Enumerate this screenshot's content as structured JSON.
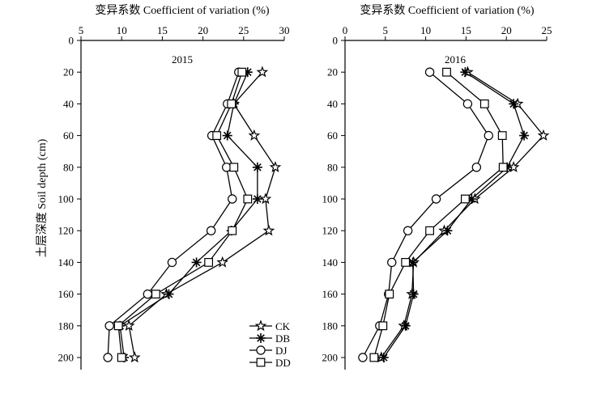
{
  "chart_data": [
    {
      "type": "line",
      "panel_label": "2015",
      "xlabel": "变异系数 Coefficient of variation (%)",
      "ylabel": "土层深度 Soil depth (cm)",
      "xlim": [
        5,
        30
      ],
      "xticks": [
        5,
        10,
        15,
        20,
        25,
        30
      ],
      "ylim": [
        0,
        200
      ],
      "yticks": [
        0,
        20,
        40,
        60,
        80,
        100,
        120,
        140,
        160,
        180,
        200
      ],
      "y_inverted": true,
      "depth": [
        20,
        40,
        60,
        80,
        100,
        120,
        140,
        160,
        180,
        200
      ],
      "series": [
        {
          "name": "CK",
          "marker": "star",
          "values": [
            27.3,
            23.8,
            26.3,
            28.9,
            27.7,
            28.1,
            22.4,
            15.5,
            10.9,
            11.6
          ]
        },
        {
          "name": "DB",
          "marker": "asterisk",
          "values": [
            25.5,
            23.8,
            23.0,
            26.7,
            26.7,
            23.5,
            19.2,
            15.8,
            9.8,
            10.3
          ]
        },
        {
          "name": "DJ",
          "marker": "circle",
          "values": [
            24.4,
            23.0,
            21.1,
            22.9,
            23.6,
            21.0,
            16.2,
            13.2,
            8.5,
            8.3
          ]
        },
        {
          "name": "DD",
          "marker": "square",
          "values": [
            24.8,
            23.5,
            21.7,
            23.8,
            25.5,
            23.6,
            20.7,
            14.2,
            9.6,
            10.0
          ]
        }
      ],
      "legend_position": "bottom-right"
    },
    {
      "type": "line",
      "panel_label": "2016",
      "xlabel": "变异系数 Coefficient of variation (%)",
      "ylabel": "",
      "xlim": [
        0,
        25
      ],
      "xticks": [
        0,
        5,
        10,
        15,
        20,
        25
      ],
      "ylim": [
        0,
        200
      ],
      "yticks": [
        0,
        20,
        40,
        60,
        80,
        100,
        120,
        140,
        160,
        180,
        200
      ],
      "y_inverted": true,
      "depth": [
        20,
        40,
        60,
        80,
        100,
        120,
        140,
        160,
        180,
        200
      ],
      "series": [
        {
          "name": "CK",
          "marker": "star",
          "values": [
            15.2,
            21.4,
            24.6,
            20.9,
            16.1,
            12.3,
            8.5,
            8.3,
            7.3,
            4.5
          ]
        },
        {
          "name": "DB",
          "marker": "asterisk",
          "values": [
            14.9,
            20.9,
            22.2,
            20.1,
            15.7,
            12.7,
            8.4,
            8.5,
            7.5,
            4.8
          ]
        },
        {
          "name": "DJ",
          "marker": "circle",
          "values": [
            10.5,
            15.2,
            17.8,
            16.3,
            11.3,
            7.8,
            5.8,
            5.4,
            4.3,
            2.2
          ]
        },
        {
          "name": "DD",
          "marker": "square",
          "values": [
            12.6,
            17.3,
            19.5,
            19.6,
            14.9,
            10.5,
            7.5,
            5.5,
            4.7,
            3.6
          ]
        }
      ],
      "legend_position": "none"
    }
  ]
}
